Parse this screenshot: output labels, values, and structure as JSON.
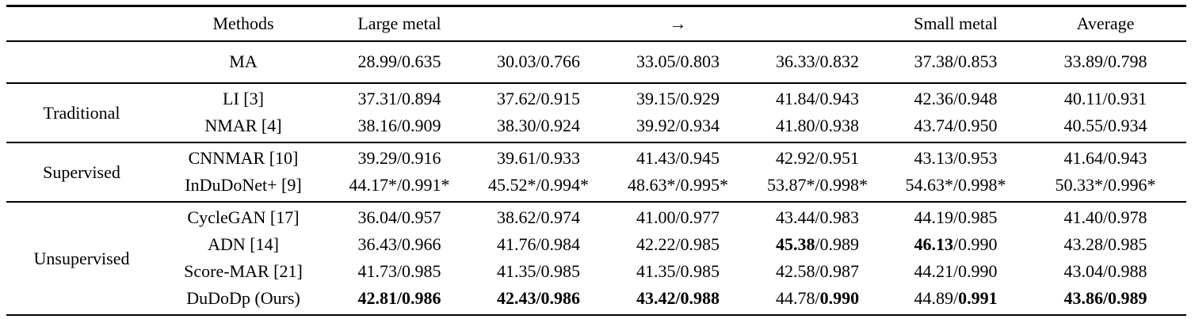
{
  "table": {
    "header": {
      "group": "",
      "methods": "Methods",
      "cols": [
        "Large metal",
        "",
        "→",
        "",
        "Small metal",
        "Average"
      ]
    },
    "sections": [
      {
        "label": "",
        "rows": [
          {
            "method": "MA",
            "cells": [
              "28.99/0.635",
              "30.03/0.766",
              "33.05/0.803",
              "36.33/0.832",
              "37.38/0.853",
              "33.89/0.798"
            ]
          }
        ]
      },
      {
        "label": "Traditional",
        "rows": [
          {
            "method": "LI [3]",
            "cells": [
              "37.31/0.894",
              "37.62/0.915",
              "39.15/0.929",
              "41.84/0.943",
              "42.36/0.948",
              "40.11/0.931"
            ]
          },
          {
            "method": "NMAR [4]",
            "cells": [
              "38.16/0.909",
              "38.30/0.924",
              "39.92/0.934",
              "41.80/0.938",
              "43.74/0.950",
              "40.55/0.934"
            ]
          }
        ]
      },
      {
        "label": "Supervised",
        "rows": [
          {
            "method": "CNNMAR [10]",
            "cells": [
              "39.29/0.916",
              "39.61/0.933",
              "41.43/0.945",
              "42.92/0.951",
              "43.13/0.953",
              "41.64/0.943"
            ]
          },
          {
            "method": "InDuDoNet+ [9]",
            "cells": [
              "44.17*/0.991*",
              "45.52*/0.994*",
              "48.63*/0.995*",
              "53.87*/0.998*",
              "54.63*/0.998*",
              "50.33*/0.996*"
            ]
          }
        ]
      },
      {
        "label": "Unsupervised",
        "rows": [
          {
            "method": "CycleGAN [17]",
            "cells": [
              "36.04/0.957",
              "38.62/0.974",
              "41.00/0.977",
              "43.44/0.983",
              "44.19/0.985",
              "41.40/0.978"
            ]
          },
          {
            "method": "ADN [14]",
            "cells": [
              "36.43/0.966",
              "41.76/0.984",
              "42.22/0.985",
              [
                {
                  "t": "45.38",
                  "b": true
                },
                {
                  "t": "/0.989",
                  "b": false
                }
              ],
              [
                {
                  "t": "46.13",
                  "b": true
                },
                {
                  "t": "/0.990",
                  "b": false
                }
              ],
              "43.28/0.985"
            ]
          },
          {
            "method": "Score-MAR [21]",
            "cells": [
              "41.73/0.985",
              "41.35/0.985",
              "41.35/0.985",
              "42.58/0.987",
              "44.21/0.990",
              "43.04/0.988"
            ]
          },
          {
            "method": "DuDoDp (Ours)",
            "cells": [
              [
                {
                  "t": "42.81/0.986",
                  "b": true
                }
              ],
              [
                {
                  "t": "42.43/0.986",
                  "b": true
                }
              ],
              [
                {
                  "t": "43.42/0.988",
                  "b": true
                }
              ],
              [
                {
                  "t": "44.78/",
                  "b": false
                },
                {
                  "t": "0.990",
                  "b": true
                }
              ],
              [
                {
                  "t": "44.89/",
                  "b": false
                },
                {
                  "t": "0.991",
                  "b": true
                }
              ],
              [
                {
                  "t": "43.86/0.989",
                  "b": true
                }
              ]
            ]
          }
        ]
      }
    ]
  }
}
